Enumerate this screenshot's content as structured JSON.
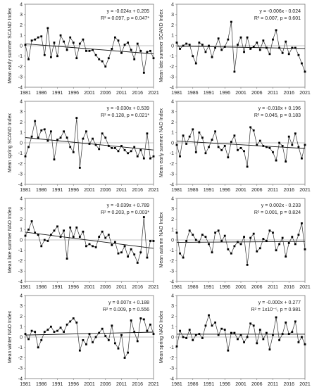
{
  "chart_data": [
    {
      "type": "scatter",
      "ylabel": "Mean early summer SCAND Index",
      "equation": "y = -0.024x + 0.205",
      "stats": "R² = 0.097, p = 0.047*",
      "xlim": [
        1981,
        2021
      ],
      "ylim": [
        -4,
        4
      ],
      "xticks": [
        "1981",
        "1986",
        "1991",
        "1996",
        "2001",
        "2006",
        "2011",
        "2016",
        "2021"
      ],
      "yticks": [
        "4",
        "3",
        "2",
        "1",
        "0",
        "-1",
        "-2",
        "-3",
        "-4"
      ],
      "trend": {
        "slope": -0.024,
        "intercept": 0.205
      },
      "values": [
        0.1,
        -1.3,
        0.5,
        0.6,
        0.8,
        0.9,
        -0.9,
        1.7,
        -1.1,
        0.3,
        -1.0,
        1.0,
        0.4,
        -0.4,
        0.8,
        0.3,
        -1.2,
        0.2,
        0.6,
        -0.5,
        -0.5,
        -0.4,
        -0.9,
        -1.3,
        -1.5,
        -2.0,
        -1.2,
        -0.3,
        0.8,
        0.5,
        -0.7,
        0.1,
        0.3,
        -0.4,
        -1.3,
        0.2,
        -0.5,
        -2.6,
        -0.6,
        -0.5,
        -1.2
      ]
    },
    {
      "type": "scatter",
      "ylabel": "Mean late summer SCAND Index",
      "equation": "y = -0.006x - 0.024",
      "stats": "R² = 0.007, p = 0.601",
      "xlim": [
        1981,
        2021
      ],
      "ylim": [
        -4,
        4
      ],
      "xticks": [
        "1981",
        "1986",
        "1991",
        "1996",
        "2001",
        "2006",
        "2011",
        "2016",
        "2021"
      ],
      "yticks": [
        "4",
        "3",
        "2",
        "1",
        "0",
        "-1",
        "-2",
        "-3",
        "-4"
      ],
      "trend": {
        "slope": -0.006,
        "intercept": -0.024
      },
      "values": [
        0.3,
        -0.3,
        0.0,
        0.2,
        0.1,
        -1.0,
        -1.7,
        0.3,
        0.1,
        -0.6,
        0.0,
        -1.1,
        -0.2,
        0.7,
        -0.4,
        -0.1,
        0.6,
        2.3,
        -2.5,
        0.1,
        0.8,
        -0.6,
        0.8,
        -0.3,
        -0.1,
        0.3,
        -0.4,
        0.5,
        -0.2,
        -0.8,
        0.6,
        1.5,
        -0.2,
        -0.7,
        0.4,
        -0.8,
        -0.2,
        -0.2,
        -0.9,
        -1.7,
        -2.5
      ]
    },
    {
      "type": "scatter",
      "ylabel": "Mean spring SCAND Index",
      "equation": "y = -0.030x + 0.539",
      "stats": "R² = 0.128, p = 0.021*",
      "xlim": [
        1981,
        2021
      ],
      "ylim": [
        -4,
        4
      ],
      "xticks": [
        "1981",
        "1986",
        "1991",
        "1996",
        "2001",
        "2006",
        "2011",
        "2016",
        "2021"
      ],
      "yticks": [
        "4",
        "3",
        "2",
        "1",
        "0",
        "-1",
        "-2",
        "-3",
        "-4"
      ],
      "trend": {
        "slope": -0.03,
        "intercept": 0.539
      },
      "values": [
        -1.3,
        -0.4,
        0.6,
        2.1,
        0.5,
        1.2,
        1.3,
        0.2,
        1.1,
        -1.6,
        0.3,
        0.5,
        1.1,
        0.5,
        -0.4,
        -0.9,
        2.4,
        -2.4,
        0.4,
        1.1,
        -0.1,
        0.4,
        -0.2,
        -0.6,
        0.9,
        0.5,
        -0.3,
        -0.5,
        -0.5,
        -0.8,
        -0.3,
        -0.7,
        -1.0,
        -0.8,
        -0.4,
        -1.3,
        -0.7,
        -1.5,
        0.9,
        -1.5,
        -1.3
      ]
    },
    {
      "type": "scatter",
      "ylabel": "Mean early summer NAO Index",
      "equation": "y = -0.018x + 0.196",
      "stats": "R² = 0.045, p = 0.183",
      "xlim": [
        1981,
        2021
      ],
      "ylim": [
        -4,
        4
      ],
      "xticks": [
        "1981",
        "1986",
        "1991",
        "1996",
        "2001",
        "2006",
        "2011",
        "2016",
        "2021"
      ],
      "yticks": [
        "4",
        "3",
        "2",
        "1",
        "0",
        "-1",
        "-2",
        "-3",
        "-4"
      ],
      "trend": {
        "slope": -0.018,
        "intercept": 0.196
      },
      "values": [
        -0.2,
        -1.3,
        0.7,
        -0.1,
        0.6,
        1.3,
        -0.9,
        1.0,
        0.5,
        -1.0,
        -0.4,
        0.3,
        1.1,
        -0.4,
        -0.7,
        -0.3,
        -1.4,
        0.1,
        0.7,
        -0.7,
        -0.5,
        -0.8,
        -2.3,
        1.5,
        1.2,
        -0.2,
        0.2,
        -0.3,
        -0.4,
        -0.5,
        -0.9,
        -1.7,
        0.0,
        -0.3,
        -1.8,
        0.6,
        -0.2,
        0.9,
        -0.4,
        -1.5,
        -0.2
      ]
    },
    {
      "type": "scatter",
      "ylabel": "Mean late summer NAO Index",
      "equation": "y = -0.039x + 0.789",
      "stats": "R² = 0.203, p = 0.003*",
      "xlim": [
        1981,
        2021
      ],
      "ylim": [
        -4,
        4
      ],
      "xticks": [
        "1981",
        "1986",
        "1991",
        "1996",
        "2001",
        "2006",
        "2011",
        "2016",
        "2021"
      ],
      "yticks": [
        "4",
        "3",
        "2",
        "1",
        "0",
        "-1",
        "-2",
        "-3",
        "-4"
      ],
      "trend": {
        "slope": -0.039,
        "intercept": 0.789
      },
      "values": [
        0.4,
        1.0,
        1.8,
        0.7,
        0.5,
        -0.6,
        0.0,
        -0.1,
        0.5,
        0.9,
        1.3,
        0.3,
        0.9,
        -1.8,
        1.2,
        0.3,
        1.2,
        0.3,
        0.8,
        -0.6,
        -0.4,
        -0.6,
        -0.7,
        0.3,
        0.8,
        0.2,
        0.5,
        -0.5,
        -0.2,
        -1.3,
        -1.2,
        -0.6,
        -1.6,
        -0.9,
        -1.4,
        -2.2,
        -1.2,
        2.2,
        -1.7,
        -0.1,
        -0.1
      ]
    },
    {
      "type": "scatter",
      "ylabel": "Mean autumn NAO Index",
      "equation": "y = 0.002x - 0.233",
      "stats": "R² = 0.001, p = 0.824",
      "xlim": [
        1981,
        2021
      ],
      "ylim": [
        -4,
        4
      ],
      "xticks": [
        "1981",
        "1986",
        "1991",
        "1996",
        "2001",
        "2006",
        "2011",
        "2016",
        "2021"
      ],
      "yticks": [
        "4",
        "3",
        "2",
        "1",
        "0",
        "-1",
        "-2",
        "-3",
        "-4"
      ],
      "trend": {
        "slope": 0.002,
        "intercept": -0.233
      },
      "values": [
        0.7,
        -1.3,
        -1.7,
        -0.1,
        0.9,
        0.5,
        0.0,
        -0.2,
        0.5,
        0.3,
        -0.4,
        -1.2,
        0.7,
        0.9,
        -0.1,
        0.4,
        -0.9,
        -1.3,
        -0.6,
        -0.2,
        -0.4,
        0.3,
        -2.4,
        0.2,
        0.6,
        -1.1,
        -0.8,
        0.1,
        -0.1,
        0.9,
        0.7,
        -1.0,
        -0.4,
        0.2,
        -1.6,
        -0.3,
        0.3,
        -0.4,
        0.5,
        1.6,
        -0.9
      ]
    },
    {
      "type": "scatter",
      "ylabel": "Mean winter NAO Index",
      "equation": "y = 0.007x + 0.188",
      "stats": "R² = 0.009, p = 0.556",
      "xlim": [
        1981,
        2021
      ],
      "ylim": [
        -4,
        4
      ],
      "xticks": [
        "1981",
        "1986",
        "1991",
        "1996",
        "2001",
        "2006",
        "2011",
        "2016",
        "2021"
      ],
      "yticks": [
        "4",
        "3",
        "2",
        "1",
        "0",
        "-1",
        "-2",
        "-3",
        "-4"
      ],
      "trend": {
        "slope": 0.007,
        "intercept": 0.188
      },
      "values": [
        0.3,
        -0.2,
        0.6,
        0.5,
        -1.0,
        -0.3,
        0.5,
        0.7,
        1.0,
        0.5,
        0.6,
        0.9,
        0.5,
        1.2,
        1.5,
        1.8,
        1.4,
        -1.3,
        -0.3,
        -0.7,
        0.3,
        -0.5,
        0.0,
        0.4,
        0.8,
        0.1,
        -0.3,
        1.1,
        -0.6,
        -1.1,
        0.2,
        -2.0,
        -1.5,
        1.6,
        0.5,
        -0.4,
        1.8,
        1.7,
        0.6,
        1.2,
        0.3
      ]
    },
    {
      "type": "scatter",
      "ylabel": "Mean spring NAO Index",
      "equation": "y = -0.000x + 0.277",
      "stats": "R² = 1x10⁻⁵, p = 0.981",
      "xlim": [
        1981,
        2021
      ],
      "ylim": [
        -4,
        4
      ],
      "xticks": [
        "1981",
        "1986",
        "1991",
        "1996",
        "2001",
        "2006",
        "2011",
        "2016",
        "2021"
      ],
      "yticks": [
        "4",
        "3",
        "2",
        "1",
        "0",
        "-1",
        "-2",
        "-3",
        "-4"
      ],
      "trend": {
        "slope": -0.0,
        "intercept": 0.277
      },
      "values": [
        -0.9,
        0.6,
        0.0,
        -0.1,
        0.7,
        -0.3,
        0.2,
        0.3,
        -0.1,
        1.1,
        2.1,
        1.1,
        1.4,
        0.2,
        0.8,
        0.7,
        -1.3,
        0.4,
        0.4,
        -0.2,
        0.2,
        -0.5,
        0.0,
        1.3,
        1.1,
        -0.6,
        0.7,
        -0.2,
        0.4,
        -1.2,
        0.2,
        1.9,
        -0.3,
        0.3,
        1.4,
        0.3,
        0.5,
        1.5,
        -0.5,
        0.0,
        -0.7
      ]
    }
  ]
}
